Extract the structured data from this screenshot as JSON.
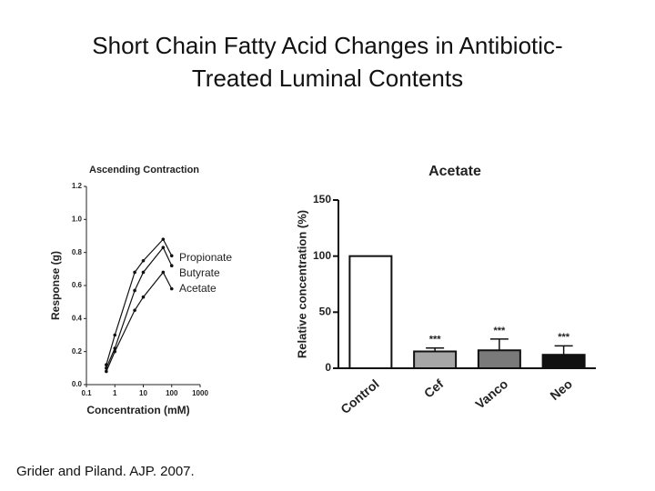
{
  "title": "Short Chain Fatty Acid Changes in Antibiotic-Treated Luminal Contents",
  "citation": "Grider and Piland. AJP. 2007.",
  "chart_data": [
    {
      "type": "line",
      "title": "Ascending Contraction",
      "x_label": "Concentration (mM)",
      "y_label": "Response (g)",
      "x": [
        0.5,
        1,
        5,
        10,
        50,
        100
      ],
      "xlog": true,
      "xlim": [
        0.1,
        1000
      ],
      "xticks": [
        0.1,
        1,
        10,
        100,
        1000
      ],
      "ylim": [
        0,
        1.2
      ],
      "yticks": [
        {
          "value": 0,
          "label": "0.0"
        },
        0.2,
        0.4,
        0.6,
        0.8,
        {
          "value": 1,
          "label": "1.0"
        },
        1.2
      ],
      "series": [
        {
          "name": "Propionate",
          "color": "#111111",
          "values": [
            0.12,
            0.3,
            0.68,
            0.75,
            0.88,
            0.78
          ]
        },
        {
          "name": "Butyrate",
          "color": "#111111",
          "values": [
            0.1,
            0.22,
            0.57,
            0.68,
            0.83,
            0.72
          ]
        },
        {
          "name": "Acetate",
          "color": "#111111",
          "values": [
            0.08,
            0.2,
            0.45,
            0.53,
            0.68,
            0.58
          ]
        }
      ]
    },
    {
      "type": "bar",
      "title": "Acetate",
      "y_label": "Relative concentration (%)",
      "categories": [
        "Control",
        "Cef",
        "Vanco",
        "Neo"
      ],
      "values": [
        100,
        15,
        16,
        12
      ],
      "errors": [
        0,
        3,
        10,
        8
      ],
      "value_annotations": [
        null,
        "***",
        "***",
        "***"
      ],
      "colors": [
        "#ffffff",
        "#a6a6a6",
        "#7a7a7a",
        "#111111"
      ],
      "ylim": [
        0,
        150
      ],
      "yticks": [
        0,
        50,
        100,
        150
      ]
    }
  ]
}
